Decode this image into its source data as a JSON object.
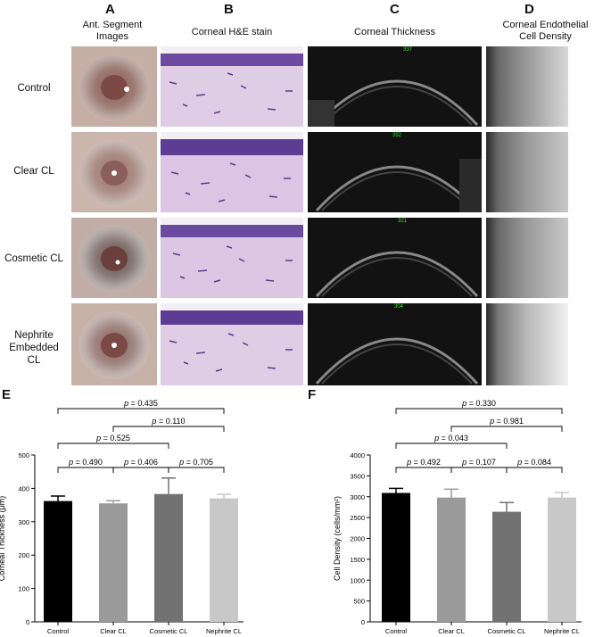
{
  "panels": {
    "A": {
      "letter": "A",
      "title": "Ant. Segment\nImages"
    },
    "B": {
      "letter": "B",
      "title": "Corneal H&E stain"
    },
    "C": {
      "letter": "C",
      "title": "Corneal Thickness"
    },
    "D": {
      "letter": "D",
      "title": "Corneal Endothelial\nCell Density"
    },
    "E": {
      "letter": "E"
    },
    "F": {
      "letter": "F"
    }
  },
  "rows": [
    "Control",
    "Clear CL",
    "Cosmetic CL",
    "Nephrite\nEmbedded CL"
  ],
  "oct_readouts": [
    "337",
    "352",
    "321",
    "304"
  ],
  "colors": {
    "control": "#000000",
    "clear": "#9a9a9a",
    "cosmetic": "#727272",
    "nephrite": "#c8c8c8",
    "oct_marker": "#35e035"
  },
  "chart_data": [
    {
      "type": "bar",
      "categories": [
        "Control",
        "Clear CL",
        "Cosmetic CL",
        "Nephrite CL"
      ],
      "values": [
        362,
        355,
        383,
        370
      ],
      "errors": [
        15,
        8,
        48,
        12
      ],
      "ylabel": "Corneal  Thickness (μm)",
      "xlabel": "",
      "ylim": [
        0,
        500
      ],
      "yticks": [
        0,
        100,
        200,
        300,
        400,
        500
      ],
      "comparisons": [
        {
          "from": 0,
          "to": 1,
          "label": "p = 0.490"
        },
        {
          "from": 1,
          "to": 2,
          "label": "p = 0.406"
        },
        {
          "from": 2,
          "to": 3,
          "label": "p = 0.705"
        },
        {
          "from": 0,
          "to": 2,
          "label": "p = 0.525"
        },
        {
          "from": 1,
          "to": 3,
          "label": "p = 0.110"
        },
        {
          "from": 0,
          "to": 3,
          "label": "p = 0.435"
        }
      ]
    },
    {
      "type": "bar",
      "categories": [
        "Control",
        "Clear CL",
        "Cosmetic CL",
        "Nephrite CL"
      ],
      "values": [
        3090,
        2980,
        2640,
        2980
      ],
      "errors": [
        110,
        200,
        220,
        120
      ],
      "ylabel": "Cell  Density (cells/mm²)",
      "xlabel": "",
      "ylim": [
        0,
        4000
      ],
      "yticks": [
        0,
        500,
        1000,
        1500,
        2000,
        2500,
        3000,
        3500,
        4000
      ],
      "comparisons": [
        {
          "from": 0,
          "to": 1,
          "label": "p = 0.492"
        },
        {
          "from": 1,
          "to": 2,
          "label": "p = 0.107"
        },
        {
          "from": 2,
          "to": 3,
          "label": "p = 0.084"
        },
        {
          "from": 0,
          "to": 2,
          "label": "p = 0.043"
        },
        {
          "from": 1,
          "to": 3,
          "label": "p = 0.981"
        },
        {
          "from": 0,
          "to": 3,
          "label": "p = 0.330"
        }
      ]
    }
  ]
}
